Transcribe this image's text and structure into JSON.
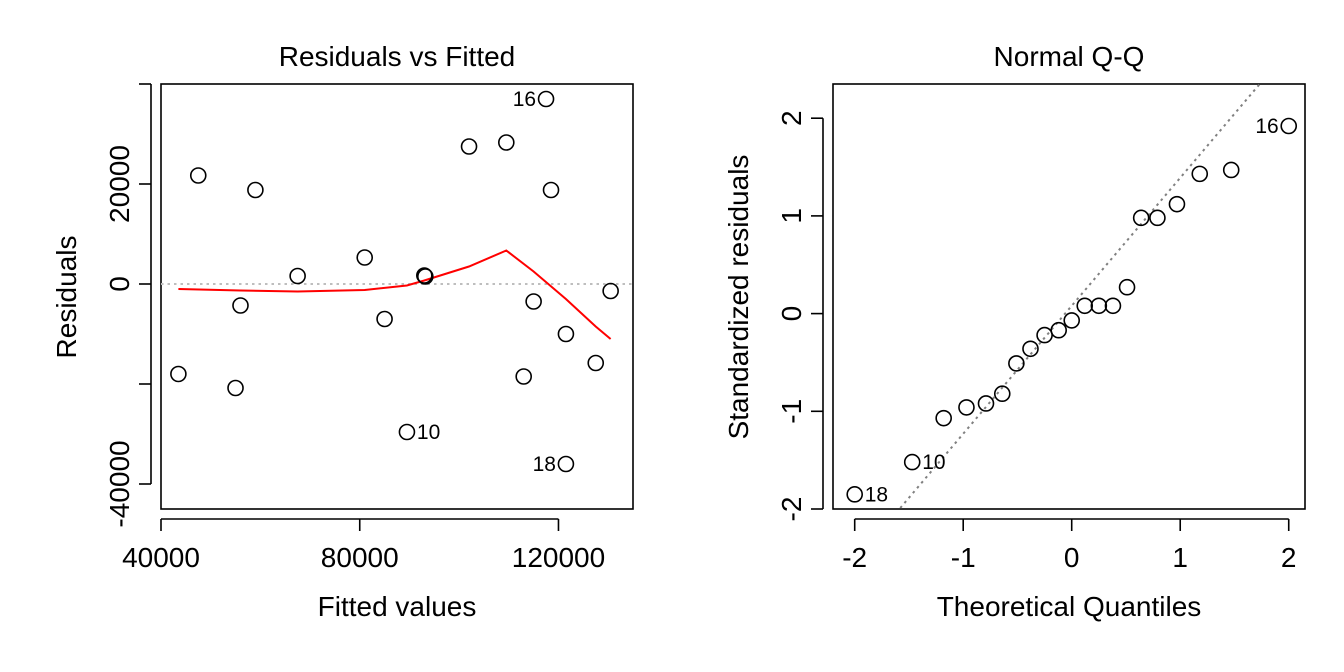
{
  "chart_data": [
    {
      "type": "scatter",
      "title": "Residuals vs Fitted",
      "xlabel": "Fitted values",
      "ylabel": "Residuals",
      "xlim": [
        40000,
        135000
      ],
      "ylim": [
        -45000,
        40000
      ],
      "xticks": [
        40000,
        80000,
        120000
      ],
      "xtick_labels": [
        "40000",
        "80000",
        "120000"
      ],
      "yticks": [
        -40000,
        -20000,
        0,
        20000,
        40000
      ],
      "ytick_labels": [
        "-40000",
        "",
        "0",
        "20000",
        ""
      ],
      "points": [
        {
          "x": 43500,
          "y": -18000,
          "label": ""
        },
        {
          "x": 47500,
          "y": 21700,
          "label": ""
        },
        {
          "x": 55000,
          "y": -20800,
          "label": ""
        },
        {
          "x": 56000,
          "y": -4300,
          "label": ""
        },
        {
          "x": 59000,
          "y": 18800,
          "label": ""
        },
        {
          "x": 67500,
          "y": 1600,
          "label": ""
        },
        {
          "x": 81000,
          "y": 5300,
          "label": ""
        },
        {
          "x": 85000,
          "y": -7000,
          "label": ""
        },
        {
          "x": 89500,
          "y": -29600,
          "label": "10"
        },
        {
          "x": 93000,
          "y": 1700,
          "label": ""
        },
        {
          "x": 93200,
          "y": 1500,
          "label": ""
        },
        {
          "x": 102000,
          "y": 27500,
          "label": ""
        },
        {
          "x": 109500,
          "y": 28300,
          "label": ""
        },
        {
          "x": 113000,
          "y": -18500,
          "label": ""
        },
        {
          "x": 115000,
          "y": -3500,
          "label": ""
        },
        {
          "x": 117500,
          "y": 37000,
          "label": "16"
        },
        {
          "x": 118500,
          "y": 18800,
          "label": ""
        },
        {
          "x": 121500,
          "y": -10000,
          "label": ""
        },
        {
          "x": 121500,
          "y": -36000,
          "label": "18"
        },
        {
          "x": 127500,
          "y": -15800,
          "label": ""
        },
        {
          "x": 130500,
          "y": -1400,
          "label": ""
        }
      ],
      "smoother": {
        "color": "#ff0000",
        "x": [
          43500,
          56000,
          67500,
          81000,
          89500,
          93000,
          102000,
          109500,
          115000,
          121500,
          127500,
          130500
        ],
        "y": [
          -1000,
          -1300,
          -1500,
          -1200,
          -300,
          700,
          3500,
          6700,
          2500,
          -3000,
          -8500,
          -11000
        ]
      },
      "reference_line": {
        "y": 0,
        "style": "dotted",
        "color": "#bebebe"
      }
    },
    {
      "type": "scatter",
      "title": "Normal Q-Q",
      "xlabel": "Theoretical Quantiles",
      "ylabel": "Standardized residuals",
      "xlim": [
        -2.2,
        2.15
      ],
      "ylim": [
        -2.0,
        2.35
      ],
      "xticks": [
        -2,
        -1,
        0,
        1,
        2
      ],
      "xtick_labels": [
        "-2",
        "-1",
        "0",
        "1",
        "2"
      ],
      "yticks": [
        -2,
        -1,
        0,
        1,
        2
      ],
      "ytick_labels": [
        "-2",
        "-1",
        "0",
        "1",
        "2"
      ],
      "points": [
        {
          "x": -2.0,
          "y": -1.85,
          "label": "18"
        },
        {
          "x": -1.47,
          "y": -1.52,
          "label": "10"
        },
        {
          "x": -1.18,
          "y": -1.07,
          "label": ""
        },
        {
          "x": -0.97,
          "y": -0.96,
          "label": ""
        },
        {
          "x": -0.79,
          "y": -0.92,
          "label": ""
        },
        {
          "x": -0.64,
          "y": -0.82,
          "label": ""
        },
        {
          "x": -0.51,
          "y": -0.51,
          "label": ""
        },
        {
          "x": -0.38,
          "y": -0.36,
          "label": ""
        },
        {
          "x": -0.25,
          "y": -0.22,
          "label": ""
        },
        {
          "x": -0.12,
          "y": -0.17,
          "label": ""
        },
        {
          "x": 0.0,
          "y": -0.07,
          "label": ""
        },
        {
          "x": 0.12,
          "y": 0.08,
          "label": ""
        },
        {
          "x": 0.25,
          "y": 0.08,
          "label": ""
        },
        {
          "x": 0.38,
          "y": 0.08,
          "label": ""
        },
        {
          "x": 0.51,
          "y": 0.27,
          "label": ""
        },
        {
          "x": 0.64,
          "y": 0.98,
          "label": ""
        },
        {
          "x": 0.79,
          "y": 0.98,
          "label": ""
        },
        {
          "x": 0.97,
          "y": 1.12,
          "label": ""
        },
        {
          "x": 1.18,
          "y": 1.43,
          "label": ""
        },
        {
          "x": 1.47,
          "y": 1.47,
          "label": ""
        },
        {
          "x": 2.0,
          "y": 1.92,
          "label": "16"
        }
      ],
      "reference_line": {
        "slope": 1.31,
        "intercept": 0.08,
        "style": "dotted",
        "color": "#808080"
      }
    }
  ]
}
